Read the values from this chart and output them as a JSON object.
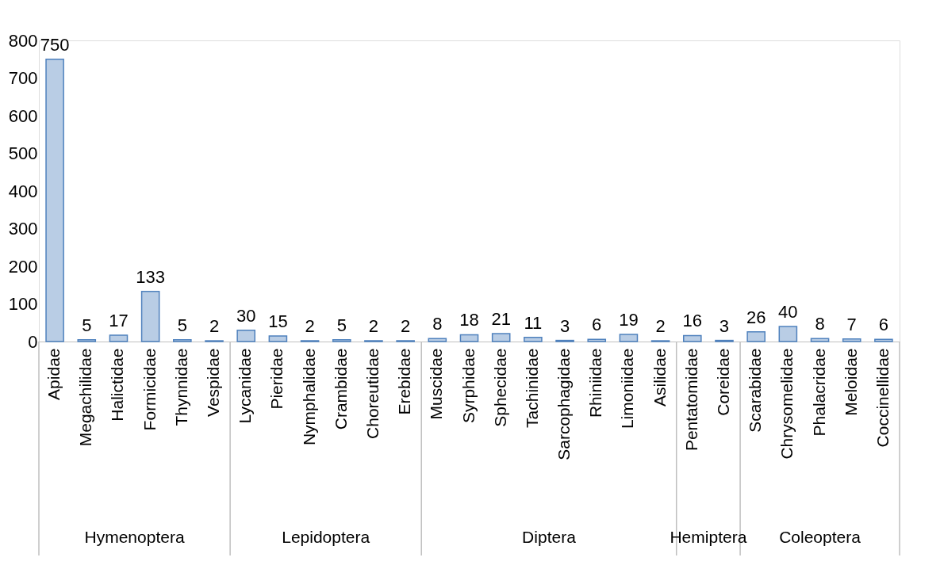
{
  "chart_data": {
    "type": "bar",
    "categories": [
      "Apidae",
      "Megachilidae",
      "Halictidae",
      "Formicidae",
      "Thynnidae",
      "Vespidae",
      "Lycanidae",
      "Pieridae",
      "Nymphalidae",
      "Crambidae",
      "Choreutidae",
      "Erebidae",
      "Muscidae",
      "Syrphidae",
      "Sphecidae",
      "Tachinidae",
      "Sarcophagidae",
      "Rhiniidae",
      "Limoniidae",
      "Asilidae",
      "Pentatomidae",
      "Coreidae",
      "Scarabidae",
      "Chrysomelidae",
      "Phalacridae",
      "Meloidae",
      "Coccinellidae"
    ],
    "values": [
      750,
      5,
      17,
      133,
      5,
      2,
      30,
      15,
      2,
      5,
      2,
      2,
      8,
      18,
      21,
      11,
      3,
      6,
      19,
      2,
      16,
      3,
      26,
      40,
      8,
      7,
      6
    ],
    "color": "#b9cde5",
    "ylim": [
      0,
      800
    ],
    "yticks": [
      0,
      100,
      200,
      300,
      400,
      500,
      600,
      700,
      800
    ],
    "grid": false,
    "data_labels": true,
    "annotations": [
      "Hymenoptera",
      "Lepidoptera",
      "Diptera",
      "Hemiptera",
      "Coleoptera"
    ]
  }
}
